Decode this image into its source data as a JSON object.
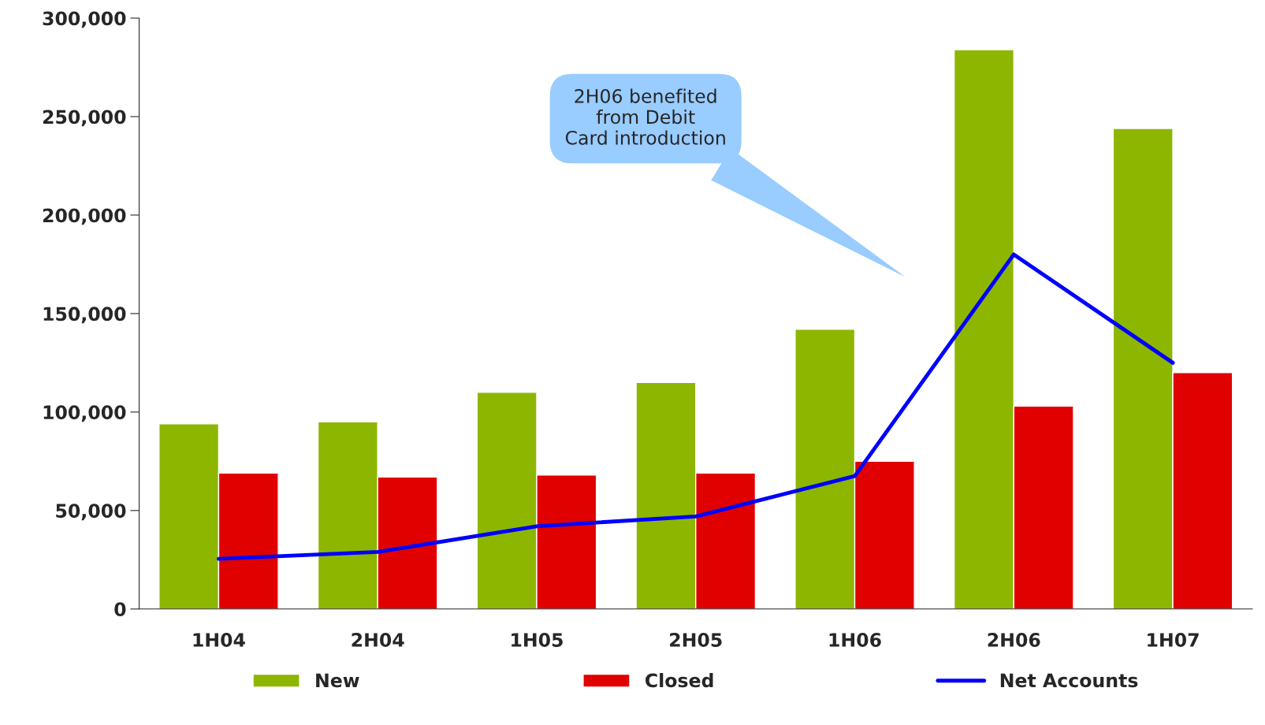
{
  "chart_data": {
    "type": "bar",
    "categories": [
      "1H04",
      "2H04",
      "1H05",
      "2H05",
      "1H06",
      "2H06",
      "1H07"
    ],
    "series": [
      {
        "name": "New",
        "color": "#8db600",
        "values": [
          94000,
          95000,
          110000,
          115000,
          142000,
          284000,
          244000
        ]
      },
      {
        "name": "Closed",
        "color": "#e00000",
        "values": [
          69000,
          67000,
          68000,
          69000,
          75000,
          103000,
          120000
        ]
      },
      {
        "name": "Net Accounts",
        "type": "line",
        "color": "#0000ff",
        "values": [
          25500,
          29000,
          42000,
          47000,
          67500,
          180000,
          125000
        ]
      }
    ],
    "ylim": [
      0,
      300000
    ],
    "yticks": [
      0,
      {
        "value": 50000,
        "label": "50,000"
      },
      {
        "value": 100000,
        "label": "100,000"
      },
      {
        "value": 150000,
        "label": "150,000"
      },
      {
        "value": 200000,
        "label": "200,000"
      },
      {
        "value": 250000,
        "label": "250,000"
      },
      {
        "value": 300000,
        "label": "300,000"
      }
    ],
    "annotations": [
      "2H06 benefited\nfrom Debit\nCard introduction"
    ],
    "legend": "bottom",
    "grid": false,
    "marker": "none",
    "line_style": "solid"
  }
}
